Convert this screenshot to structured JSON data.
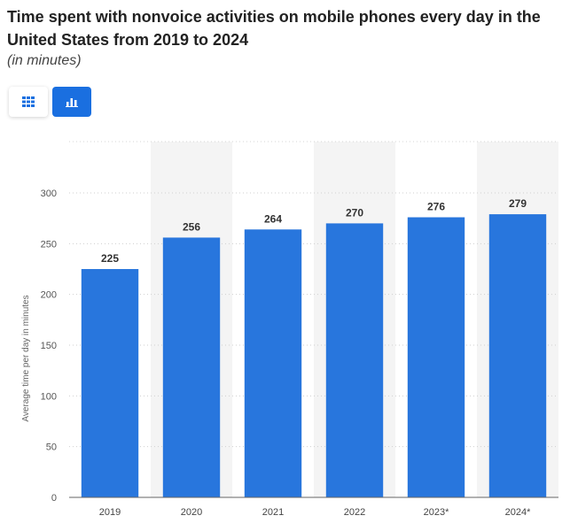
{
  "header": {
    "title": "Time spent with nonvoice activities on mobile phones every day in the United States from 2019 to 2024",
    "subtitle": "(in minutes)"
  },
  "view_toggle": {
    "table_icon": "table-grid-icon",
    "chart_icon": "bar-chart-icon",
    "active": "chart"
  },
  "colors": {
    "bar": "#2876dd",
    "active_toggle": "#1a6fe0",
    "alt_band": "#f4f4f4"
  },
  "chart_data": {
    "type": "bar",
    "categories": [
      "2019",
      "2020",
      "2021",
      "2022",
      "2023*",
      "2024*"
    ],
    "values": [
      225,
      256,
      264,
      270,
      276,
      279
    ],
    "title": "Time spent with nonvoice activities on mobile phones every day in the United States from 2019 to 2024",
    "subtitle": "(in minutes)",
    "xlabel": "",
    "ylabel": "Average time per day in minutes",
    "ylim": [
      0,
      300
    ],
    "yticks": [
      0,
      50,
      100,
      150,
      200,
      250,
      300
    ],
    "grid": true,
    "data_labels": true
  }
}
